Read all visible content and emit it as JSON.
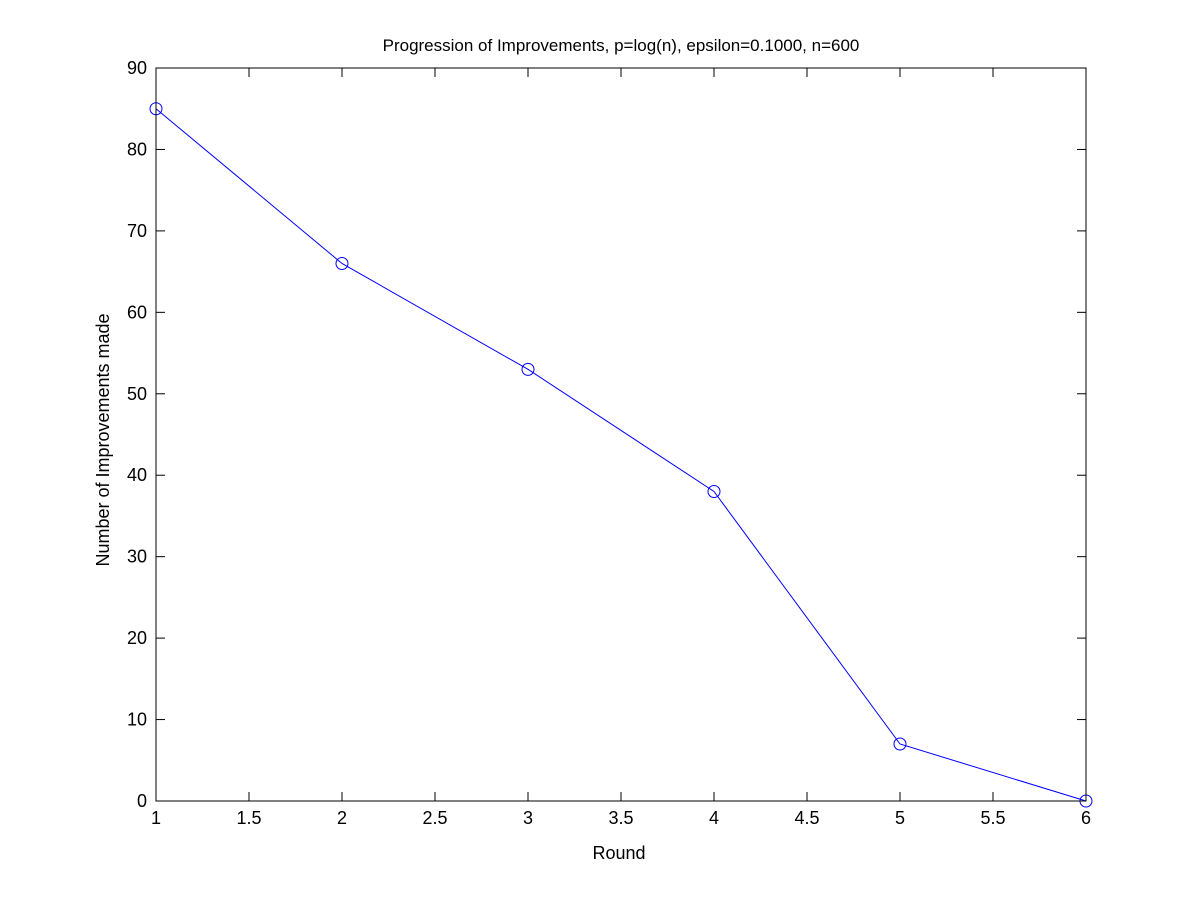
{
  "chart_data": {
    "type": "line",
    "title": "Progression of Improvements, p=log(n), epsilon=0.1000, n=600",
    "xlabel": "Round",
    "ylabel": "Number of Improvements made",
    "xlim": [
      1,
      6
    ],
    "ylim": [
      0,
      90
    ],
    "xticks": [
      1,
      1.5,
      2,
      2.5,
      3,
      3.5,
      4,
      4.5,
      5,
      5.5,
      6
    ],
    "yticks": [
      0,
      10,
      20,
      30,
      40,
      50,
      60,
      70,
      80,
      90
    ],
    "grid": false,
    "legend": null,
    "series": [
      {
        "x": [
          1,
          2,
          3,
          4,
          5,
          6
        ],
        "values": [
          85,
          66,
          53,
          38,
          7,
          0
        ],
        "color": "#0000ff",
        "marker": "circle"
      }
    ]
  }
}
